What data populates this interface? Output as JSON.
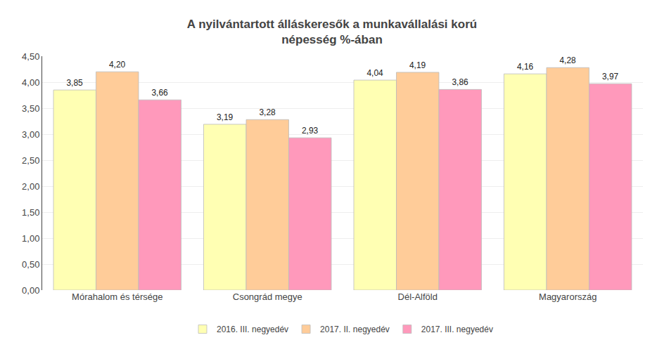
{
  "chart_data": {
    "type": "bar",
    "title": "A nyilvántartott álláskeresők a munkavállalási korú\nnépesség %-ában",
    "categories": [
      "Mórahalom és térsége",
      "Csongrád megye",
      "Dél-Alföld",
      "Magyarország"
    ],
    "series": [
      {
        "name": "2016. III. negyedév",
        "color": "#FFFFB3",
        "values": [
          3.85,
          3.19,
          4.04,
          4.16
        ],
        "value_labels": [
          "3,85",
          "3,19",
          "4,04",
          "4,16"
        ]
      },
      {
        "name": "2017. II. negyedév",
        "color": "#FFCC99",
        "values": [
          4.2,
          3.28,
          4.19,
          4.28
        ],
        "value_labels": [
          "4,20",
          "3,28",
          "4,19",
          "4,28"
        ]
      },
      {
        "name": "2017. III. negyedév",
        "color": "#FF99BB",
        "values": [
          3.66,
          2.93,
          3.86,
          3.97
        ],
        "value_labels": [
          "3,66",
          "2,93",
          "3,86",
          "3,97"
        ]
      }
    ],
    "ylim": [
      0,
      4.5
    ],
    "yticks": [
      {
        "value": 0,
        "label": "0,00"
      },
      {
        "value": 0.5,
        "label": "0,50"
      },
      {
        "value": 1,
        "label": "1,00"
      },
      {
        "value": 1.5,
        "label": "1,50"
      },
      {
        "value": 2,
        "label": "2,00"
      },
      {
        "value": 2.5,
        "label": "2,50"
      },
      {
        "value": 3,
        "label": "3,00"
      },
      {
        "value": 3.5,
        "label": "3,50"
      },
      {
        "value": 4,
        "label": "4,00"
      },
      {
        "value": 4.5,
        "label": "4,50"
      }
    ],
    "grid": true,
    "legend": "bottom",
    "data_labels": true
  }
}
